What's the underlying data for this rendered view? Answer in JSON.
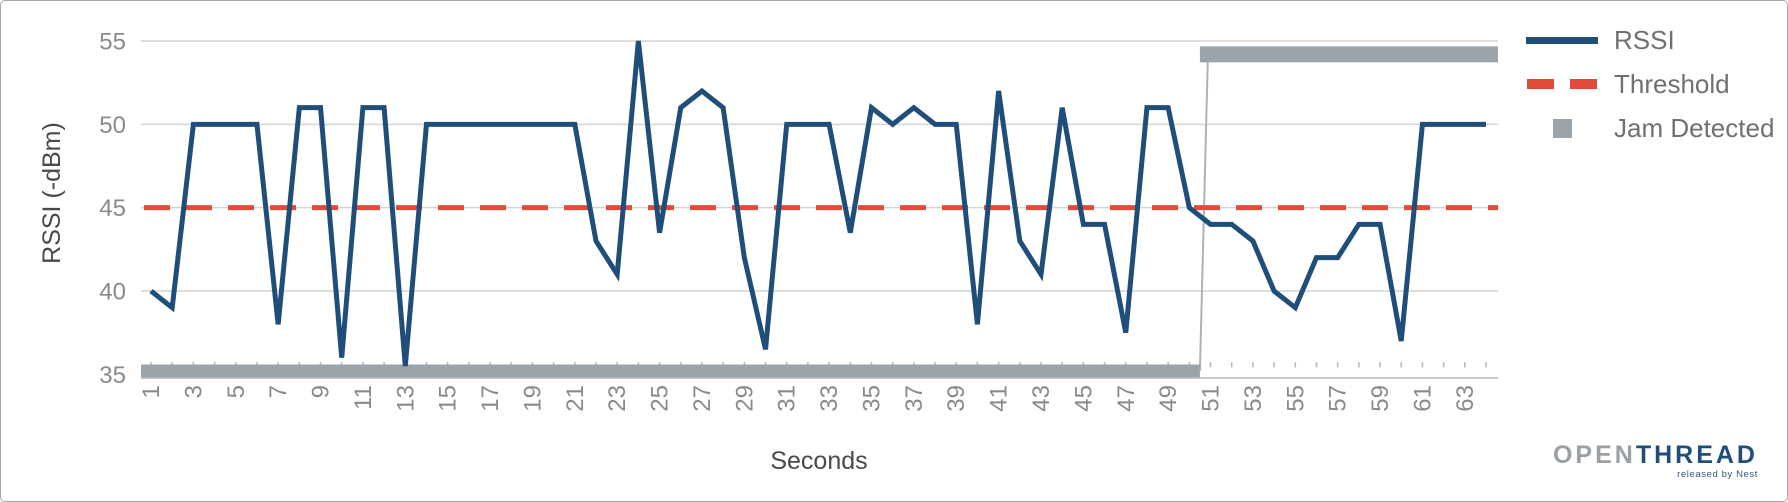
{
  "chart_data": {
    "type": "line",
    "title": "",
    "xlabel": "Seconds",
    "ylabel": "RSSI (-dBm)",
    "ylim": [
      35,
      55
    ],
    "yticks": [
      55,
      50,
      45,
      40,
      35
    ],
    "xticks": [
      1,
      3,
      5,
      7,
      9,
      11,
      13,
      15,
      17,
      19,
      21,
      23,
      25,
      27,
      29,
      31,
      33,
      35,
      37,
      39,
      41,
      43,
      45,
      47,
      49,
      51,
      53,
      55,
      57,
      59,
      61,
      63
    ],
    "grid": "horizontal",
    "legend_position": "right-top",
    "x": [
      1,
      2,
      3,
      4,
      5,
      6,
      7,
      8,
      9,
      10,
      11,
      12,
      13,
      14,
      15,
      16,
      17,
      18,
      19,
      20,
      21,
      22,
      23,
      24,
      25,
      26,
      27,
      28,
      29,
      30,
      31,
      32,
      33,
      34,
      35,
      36,
      37,
      38,
      39,
      40,
      41,
      42,
      43,
      44,
      45,
      46,
      47,
      48,
      49,
      50,
      51,
      52,
      53,
      54,
      55,
      56,
      57,
      58,
      59,
      60,
      61,
      62,
      63,
      64
    ],
    "series": [
      {
        "name": "RSSI",
        "type": "line",
        "values": [
          40,
          39,
          50,
          50,
          50,
          50,
          38,
          51,
          51,
          36,
          51,
          51,
          35.5,
          50,
          50,
          50,
          50,
          50,
          50,
          50,
          50,
          43,
          41,
          55,
          43.5,
          51,
          52,
          51,
          42,
          36.5,
          50,
          50,
          50,
          43.5,
          51,
          50,
          51,
          50,
          50,
          38,
          52,
          43,
          41,
          51,
          44,
          44,
          37.5,
          51,
          51,
          45,
          44,
          44,
          43,
          40,
          39,
          42,
          42,
          44,
          44,
          37,
          50,
          50,
          50,
          50
        ]
      },
      {
        "name": "Threshold",
        "type": "horizontal-dashed-line",
        "value": 45
      },
      {
        "name": "Jam Detected",
        "type": "thick-level-bar",
        "segments": [
          {
            "from_second": 1,
            "to_second": 50,
            "level": 35.2
          },
          {
            "from_second": 51,
            "to_second": 64,
            "level": 54.2
          }
        ]
      }
    ]
  },
  "legend": {
    "items": [
      {
        "label": "RSSI",
        "swatch": "line"
      },
      {
        "label": "Threshold",
        "swatch": "dashes"
      },
      {
        "label": "Jam Detected",
        "swatch": "square"
      }
    ]
  },
  "logo": {
    "part1": "OPEN",
    "part2": "THREAD",
    "tagline": "released by Nest"
  },
  "colors": {
    "rssi": "#1f4e7a",
    "threshold": "#e24b38",
    "jam": "#9ba3ab",
    "jam_connector": "#aab3b9",
    "grid": "#d4d4d4",
    "axis_line": "#c9c9c9",
    "tick_mark": "#b5bcc1",
    "tick_text": "#8a8a8a",
    "axis_title_text": "#4a4a4a",
    "legend_text": "#6f7072",
    "logo_gray": "#9aa0a6",
    "logo_navy": "#1f4e7a",
    "tagline_navy": "#33567c"
  }
}
